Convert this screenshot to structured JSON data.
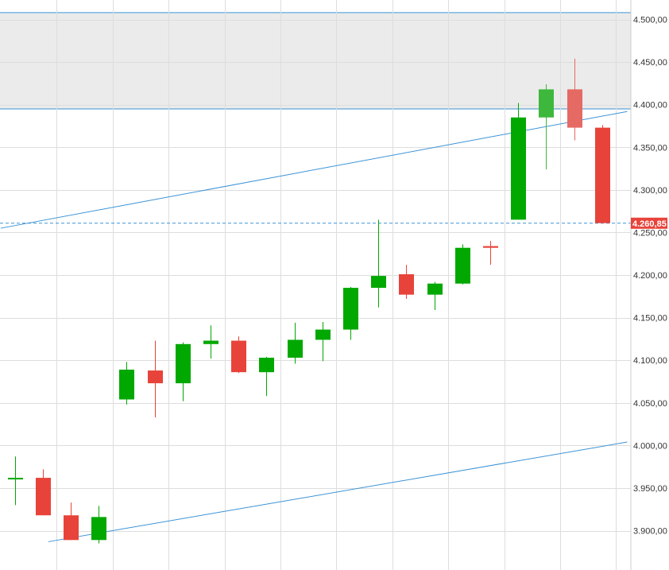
{
  "chart_data": {
    "type": "candlestick",
    "title": "",
    "xlabel": "",
    "ylabel": "",
    "ylim": [
      3885,
      4515
    ],
    "y_ticks": [
      "4.500,00",
      "4.450,00",
      "4.400,00",
      "4.350,00",
      "4.300,00",
      "4.250,00",
      "4.200,00",
      "4.150,00",
      "4.100,00",
      "4.050,00",
      "4.000,00",
      "3.950,00",
      "3.900,00"
    ],
    "y_tick_values": [
      4500,
      4450,
      4400,
      4350,
      4300,
      4250,
      4200,
      4150,
      4100,
      4050,
      4000,
      3950,
      3900
    ],
    "grid": true,
    "last_price_label": "4.260,85",
    "last_price": 4260.85,
    "zone": {
      "low": 4395,
      "high": 4508
    },
    "trendlines": [
      {
        "from": [
          -0.5,
          4255
        ],
        "to": [
          21.9,
          4392
        ]
      },
      {
        "from": [
          1.2,
          3887
        ],
        "to": [
          21.9,
          4004
        ]
      }
    ],
    "candles": [
      {
        "open": 3962,
        "high": 3987,
        "low": 3930,
        "close": 3962
      },
      {
        "open": 3962,
        "high": 3972,
        "low": 3918,
        "close": 3918
      },
      {
        "open": 3918,
        "high": 3933,
        "low": 3889,
        "close": 3889
      },
      {
        "open": 3889,
        "high": 3929,
        "low": 3885,
        "close": 3916
      },
      {
        "open": 4054,
        "high": 4098,
        "low": 4048,
        "close": 4089
      },
      {
        "open": 4088,
        "high": 4123,
        "low": 4033,
        "close": 4073
      },
      {
        "open": 4073,
        "high": 4121,
        "low": 4052,
        "close": 4119
      },
      {
        "open": 4119,
        "high": 4141,
        "low": 4102,
        "close": 4123
      },
      {
        "open": 4123,
        "high": 4128,
        "low": 4085,
        "close": 4086
      },
      {
        "open": 4086,
        "high": 4104,
        "low": 4058,
        "close": 4103
      },
      {
        "open": 4103,
        "high": 4144,
        "low": 4096,
        "close": 4124
      },
      {
        "open": 4124,
        "high": 4145,
        "low": 4099,
        "close": 4136
      },
      {
        "open": 4136,
        "high": 4186,
        "low": 4124,
        "close": 4185
      },
      {
        "open": 4185,
        "high": 4265,
        "low": 4162,
        "close": 4199
      },
      {
        "open": 4201,
        "high": 4212,
        "low": 4172,
        "close": 4177
      },
      {
        "open": 4177,
        "high": 4192,
        "low": 4159,
        "close": 4190
      },
      {
        "open": 4190,
        "high": 4236,
        "low": 4189,
        "close": 4232
      },
      {
        "open": 4234,
        "high": 4240,
        "low": 4212,
        "close": 4232
      },
      {
        "open": 4265,
        "high": 4402,
        "low": 4265,
        "close": 4385
      },
      {
        "open": 4385,
        "high": 4424,
        "low": 4324,
        "close": 4418
      },
      {
        "open": 4418,
        "high": 4454,
        "low": 4358,
        "close": 4373
      },
      {
        "open": 4373,
        "high": 4376,
        "low": 4261,
        "close": 4261
      }
    ],
    "colors": {
      "up": "#00a800",
      "down": "#e8433a",
      "up_faded": "#3db83d",
      "down_faded": "#e56a63",
      "grid": "#dddddd",
      "zone": "#ebebeb",
      "line": "#3b93d6",
      "last_price": "#e8433a"
    }
  }
}
